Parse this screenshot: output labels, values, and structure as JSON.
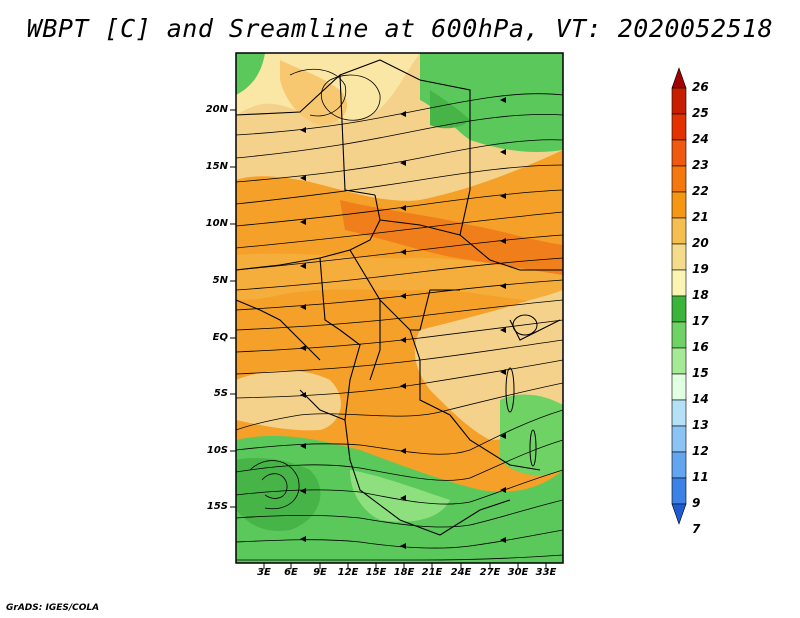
{
  "title": "WBPT [C] and Sreamline at 600hPa, VT: 2020052518",
  "footer": "GrADS: IGES/COLA",
  "map": {
    "lat_labels": [
      "20N",
      "15N",
      "10N",
      "5N",
      "EQ",
      "5S",
      "10S",
      "15S"
    ],
    "lon_labels": [
      "3E",
      "6E",
      "9E",
      "12E",
      "15E",
      "18E",
      "21E",
      "24E",
      "27E",
      "30E",
      "33E"
    ]
  },
  "colorbar": {
    "labels": [
      "26",
      "25",
      "24",
      "23",
      "22",
      "21",
      "20",
      "19",
      "18",
      "17",
      "16",
      "15",
      "14",
      "13",
      "12",
      "11",
      "9",
      "7"
    ],
    "colors": [
      "#a00000",
      "#c81e00",
      "#e13200",
      "#ef5a10",
      "#f5780f",
      "#f59614",
      "#f5bf50",
      "#f5dc8c",
      "#fbf5b4",
      "#3cb43c",
      "#6ed264",
      "#a5eb96",
      "#e1ffe1",
      "#b4e1f5",
      "#8cc3f5",
      "#64a5f0",
      "#3c82e6",
      "#1e5ad2"
    ]
  }
}
